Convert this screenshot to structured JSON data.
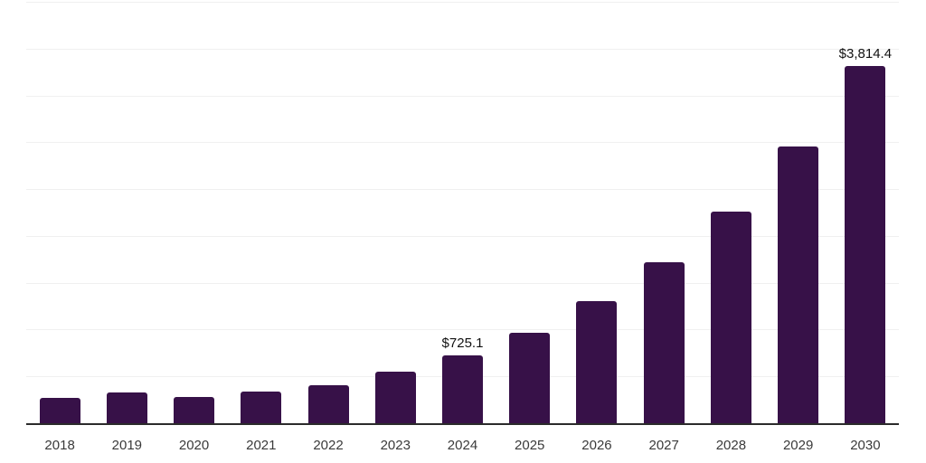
{
  "chart_data": {
    "type": "bar",
    "title": "",
    "xlabel": "",
    "ylabel": "",
    "categories": [
      "2018",
      "2019",
      "2020",
      "2021",
      "2022",
      "2023",
      "2024",
      "2025",
      "2026",
      "2027",
      "2028",
      "2029",
      "2030"
    ],
    "values": [
      270,
      330,
      281,
      334,
      407,
      546,
      725.1,
      969,
      1300,
      1718,
      2262,
      2953,
      3814.4
    ],
    "bar_labels": [
      "",
      "",
      "",
      "",
      "",
      "",
      "$725.1",
      "",
      "",
      "",
      "",
      "",
      "$3,814.4"
    ],
    "ylim": [
      0,
      4500
    ],
    "gridline_step": 500,
    "grid": true,
    "legend": false,
    "colors": {
      "bar": "#371148",
      "gridline": "#F0F0F0",
      "axis_line": "#2B2B2B",
      "tick_label": "#3A3A3A",
      "data_label": "#111111",
      "background": "#FFFFFF"
    }
  }
}
